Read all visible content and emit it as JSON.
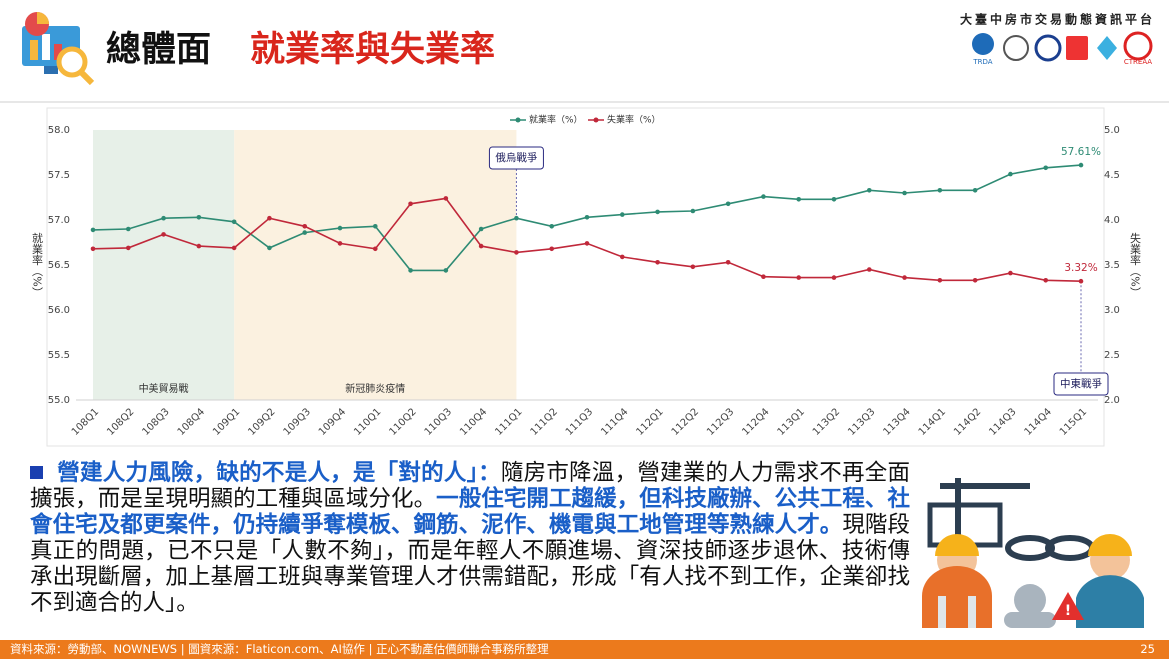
{
  "header": {
    "title": "總體面",
    "subtitle": "就業率與失業率",
    "platform": "大臺中房市交易動態資訊平台",
    "logo_texts": [
      "TRDA",
      "CTREAA"
    ]
  },
  "chart_data": {
    "type": "line",
    "categories": [
      "108Q1",
      "108Q2",
      "108Q3",
      "108Q4",
      "109Q1",
      "109Q2",
      "109Q3",
      "109Q4",
      "110Q1",
      "110Q2",
      "110Q3",
      "110Q4",
      "111Q1",
      "111Q2",
      "111Q3",
      "111Q4",
      "112Q1",
      "112Q2",
      "112Q3",
      "112Q4",
      "113Q1",
      "113Q2",
      "113Q3",
      "113Q4",
      "114Q1",
      "114Q2",
      "114Q3",
      "114Q4",
      "115Q1"
    ],
    "series": [
      {
        "name": "就業率（%）",
        "color": "#2e8b74",
        "axis": "y",
        "values": [
          56.89,
          56.9,
          57.02,
          57.03,
          56.98,
          56.69,
          56.86,
          56.91,
          56.93,
          56.44,
          56.44,
          56.9,
          57.02,
          56.93,
          57.03,
          57.06,
          57.09,
          57.1,
          57.18,
          57.26,
          57.23,
          57.23,
          57.33,
          57.3,
          57.33,
          57.33,
          57.51,
          57.58,
          57.61
        ],
        "value_labels": [
          null,
          null,
          null,
          null,
          null,
          null,
          null,
          null,
          null,
          null,
          null,
          null,
          null,
          null,
          null,
          null,
          null,
          null,
          null,
          null,
          null,
          null,
          null,
          null,
          null,
          null,
          null,
          null,
          "57.61%"
        ]
      },
      {
        "name": "失業率（%）",
        "color": "#c0283a",
        "axis": "y2",
        "values": [
          3.68,
          3.69,
          3.84,
          3.71,
          3.69,
          4.02,
          3.93,
          3.74,
          3.68,
          4.18,
          4.24,
          3.71,
          3.64,
          3.68,
          3.74,
          3.59,
          3.53,
          3.48,
          3.53,
          3.37,
          3.36,
          3.36,
          3.45,
          3.36,
          3.33,
          3.33,
          3.41,
          3.33,
          3.32
        ],
        "value_labels": [
          null,
          null,
          null,
          null,
          null,
          null,
          null,
          null,
          null,
          null,
          null,
          null,
          null,
          null,
          null,
          null,
          null,
          null,
          null,
          null,
          null,
          null,
          null,
          null,
          null,
          null,
          null,
          null,
          "3.32%"
        ]
      }
    ],
    "y_label": "就業率（%）",
    "y2_label": "失業率（%）",
    "ylim": [
      55,
      58
    ],
    "yticks": [
      {
        "value": 55,
        "label": "55.0"
      },
      55.5,
      {
        "value": 56,
        "label": "56.0"
      },
      56.5,
      {
        "value": 57,
        "label": "57.0"
      },
      57.5,
      {
        "value": 58,
        "label": "58.0"
      }
    ],
    "y2lim": [
      2,
      5
    ],
    "y2ticks": [
      {
        "value": 2,
        "label": "2.0"
      },
      2.5,
      {
        "value": 3,
        "label": "3.0"
      },
      3.5,
      {
        "value": 4,
        "label": "4.0"
      },
      4.5,
      {
        "value": 5,
        "label": "5.0"
      }
    ],
    "grid": false,
    "legend": "top",
    "bands": [
      {
        "label": "中美貿易戰",
        "from": "108Q1",
        "to": "109Q1",
        "color": "#e7f0e8"
      },
      {
        "label": "新冠肺炎疫情",
        "from": "109Q1",
        "to": "111Q1",
        "color": "#fbf1e0"
      }
    ],
    "annotations": [
      {
        "text": "俄烏戰爭",
        "category": "111Q1"
      },
      {
        "text": "中東戰爭",
        "category": "115Q1"
      }
    ]
  },
  "body": [
    "營建人力風險，缺的不是人，是「對的人」：",
    "隨房市降溫，營建業的人力需求不再全面擴張，而是呈現明顯的工種與區域分化。",
    "一般住宅開工趨緩，但科技廠辦、公共工程、社會住宅及都更案件，仍持續爭奪模板、鋼筋、泥作、機電與工地管理等熟練人才。",
    "現階段真正的問題，已不只是「人數不夠」，而是年輕人不願進場、資深技師逐步退休、技術傳承出現斷層，加上基層工班與專業管理人才供需錯配，形成「有人找不到工作，企業卻找不到適合的人」。"
  ],
  "footer": {
    "source": "資料來源：勞動部、NOWNEWS | 圖資來源：Flaticon.com、AI協作 | 正心不動產估價師聯合事務所整理",
    "page": "25"
  }
}
